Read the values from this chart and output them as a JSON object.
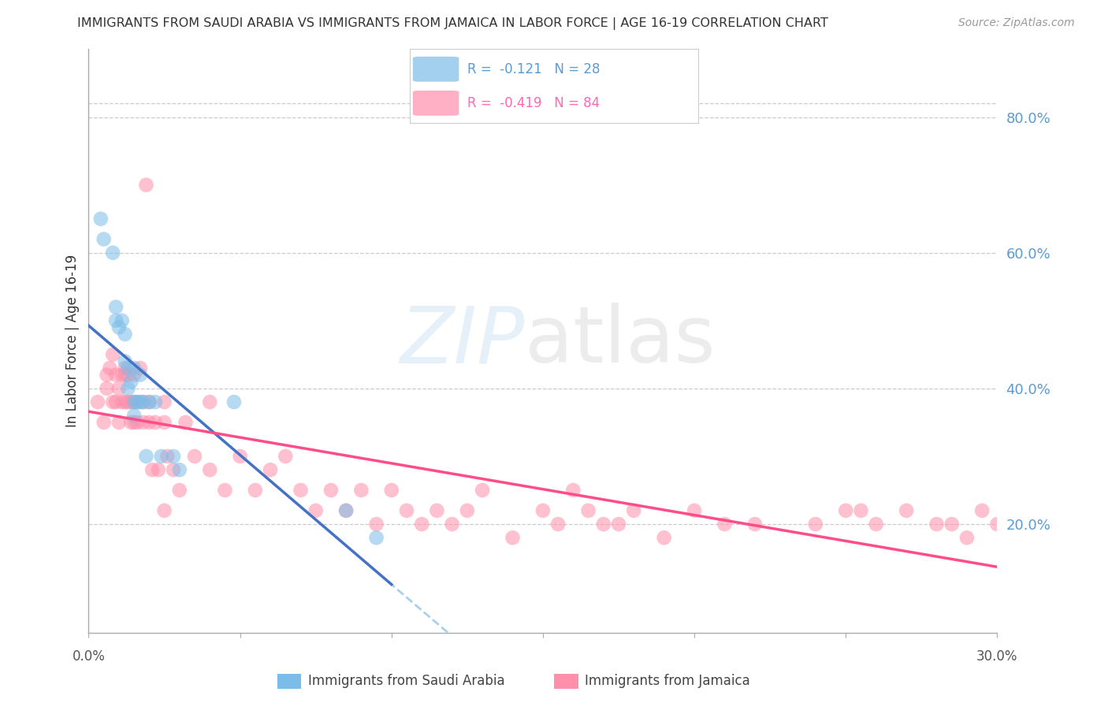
{
  "title": "IMMIGRANTS FROM SAUDI ARABIA VS IMMIGRANTS FROM JAMAICA IN LABOR FORCE | AGE 16-19 CORRELATION CHART",
  "source": "Source: ZipAtlas.com",
  "ylabel": "In Labor Force | Age 16-19",
  "right_ytick_vals": [
    0.8,
    0.6,
    0.4,
    0.2
  ],
  "right_ytick_labels": [
    "80.0%",
    "60.0%",
    "40.0%",
    "20.0%"
  ],
  "xlim": [
    0.0,
    0.3
  ],
  "ylim": [
    0.04,
    0.9
  ],
  "saudi_color": "#7bbde8",
  "jamaica_color": "#ff8fab",
  "saudi_line_color": "#4472c4",
  "jamaica_line_color": "#ff4d8a",
  "saudi_dashed_color": "#aacfee",
  "grid_color": "#cccccc",
  "bg_color": "#ffffff",
  "legend_saudi_text": "R =  -0.121   N = 28",
  "legend_jamaica_text": "R =  -0.419   N = 84",
  "legend_saudi_color": "#5b9bd5",
  "legend_jamaica_color": "#ff69b4",
  "bottom_label_saudi": "Immigrants from Saudi Arabia",
  "bottom_label_jamaica": "Immigrants from Jamaica",
  "saudi_points_x": [
    0.004,
    0.005,
    0.008,
    0.009,
    0.009,
    0.01,
    0.011,
    0.012,
    0.012,
    0.013,
    0.013,
    0.014,
    0.015,
    0.015,
    0.015,
    0.016,
    0.017,
    0.017,
    0.018,
    0.019,
    0.02,
    0.022,
    0.024,
    0.028,
    0.03,
    0.085,
    0.095,
    0.048
  ],
  "saudi_points_y": [
    0.65,
    0.62,
    0.6,
    0.5,
    0.52,
    0.49,
    0.5,
    0.48,
    0.44,
    0.43,
    0.4,
    0.41,
    0.43,
    0.38,
    0.36,
    0.38,
    0.42,
    0.38,
    0.38,
    0.3,
    0.38,
    0.38,
    0.3,
    0.3,
    0.28,
    0.22,
    0.18,
    0.38
  ],
  "jamaica_points_x": [
    0.003,
    0.005,
    0.006,
    0.006,
    0.007,
    0.008,
    0.008,
    0.009,
    0.009,
    0.01,
    0.01,
    0.011,
    0.011,
    0.012,
    0.012,
    0.012,
    0.013,
    0.013,
    0.014,
    0.014,
    0.015,
    0.015,
    0.015,
    0.016,
    0.016,
    0.017,
    0.018,
    0.018,
    0.019,
    0.02,
    0.02,
    0.021,
    0.022,
    0.023,
    0.025,
    0.025,
    0.025,
    0.026,
    0.028,
    0.03,
    0.032,
    0.035,
    0.04,
    0.04,
    0.045,
    0.05,
    0.055,
    0.06,
    0.065,
    0.07,
    0.075,
    0.08,
    0.085,
    0.09,
    0.095,
    0.1,
    0.105,
    0.11,
    0.115,
    0.12,
    0.125,
    0.13,
    0.14,
    0.15,
    0.155,
    0.16,
    0.165,
    0.17,
    0.175,
    0.18,
    0.19,
    0.2,
    0.21,
    0.22,
    0.24,
    0.25,
    0.255,
    0.26,
    0.27,
    0.28,
    0.285,
    0.29,
    0.295,
    0.3
  ],
  "jamaica_points_y": [
    0.38,
    0.35,
    0.42,
    0.4,
    0.43,
    0.45,
    0.38,
    0.42,
    0.38,
    0.4,
    0.35,
    0.42,
    0.38,
    0.42,
    0.38,
    0.43,
    0.38,
    0.42,
    0.38,
    0.35,
    0.38,
    0.35,
    0.42,
    0.38,
    0.35,
    0.43,
    0.35,
    0.38,
    0.7,
    0.35,
    0.38,
    0.28,
    0.35,
    0.28,
    0.38,
    0.35,
    0.22,
    0.3,
    0.28,
    0.25,
    0.35,
    0.3,
    0.38,
    0.28,
    0.25,
    0.3,
    0.25,
    0.28,
    0.3,
    0.25,
    0.22,
    0.25,
    0.22,
    0.25,
    0.2,
    0.25,
    0.22,
    0.2,
    0.22,
    0.2,
    0.22,
    0.25,
    0.18,
    0.22,
    0.2,
    0.25,
    0.22,
    0.2,
    0.2,
    0.22,
    0.18,
    0.22,
    0.2,
    0.2,
    0.2,
    0.22,
    0.22,
    0.2,
    0.22,
    0.2,
    0.2,
    0.18,
    0.22,
    0.2
  ],
  "marker_size": 180,
  "marker_alpha": 0.55
}
